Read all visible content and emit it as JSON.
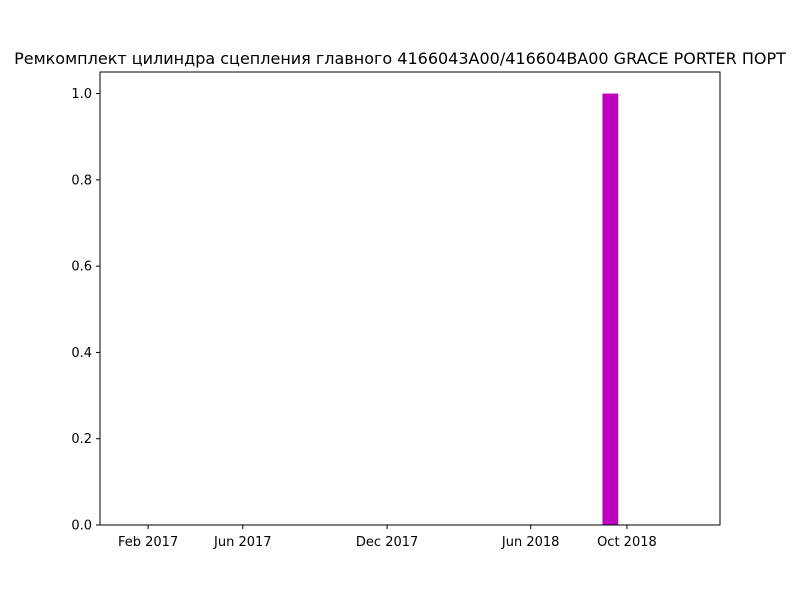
{
  "chart_data": {
    "type": "bar",
    "title": "Ремкомплект цилиндра сцепления главного 4166043A00/416604BA00 GRACE PORTER ПОРТ",
    "xlabel": "",
    "ylabel": "",
    "x_axis": "date",
    "xlim": [
      "2016-12-02",
      "2019-01-27"
    ],
    "ylim": [
      0,
      1.05
    ],
    "grid": false,
    "x_ticks": [
      {
        "date": "2017-02-01",
        "label": "Feb 2017"
      },
      {
        "date": "2017-06-01",
        "label": "Jun 2017"
      },
      {
        "date": "2017-12-01",
        "label": "Dec 2017"
      },
      {
        "date": "2018-06-01",
        "label": "Jun 2018"
      },
      {
        "date": "2018-10-01",
        "label": "Oct 2018"
      }
    ],
    "y_ticks": [
      {
        "value": 0.0,
        "label": "0.0"
      },
      {
        "value": 0.2,
        "label": "0.2"
      },
      {
        "value": 0.4,
        "label": "0.4"
      },
      {
        "value": 0.6,
        "label": "0.6"
      },
      {
        "value": 0.8,
        "label": "0.8"
      },
      {
        "value": 1.0,
        "label": "1.0"
      }
    ],
    "series": [
      {
        "color": "#bf00bf",
        "points": [
          {
            "x": "2018-09-10",
            "y": 1
          }
        ]
      }
    ]
  }
}
